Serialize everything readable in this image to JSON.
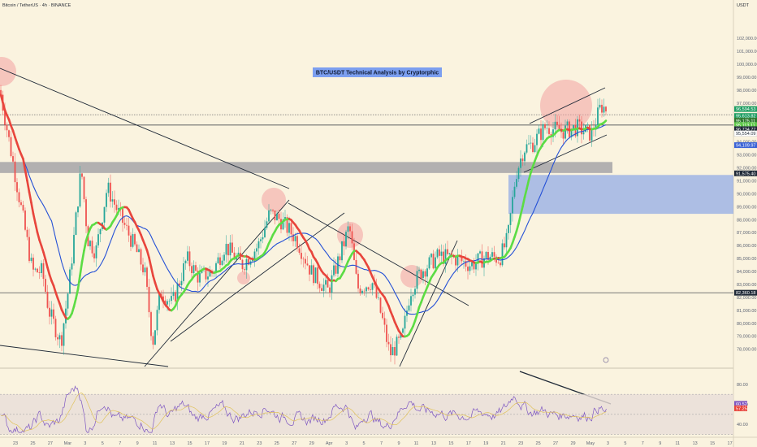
{
  "header": {
    "symbol_line": "Bitcoin / TetherUS · 4h · BINANCE",
    "currency": "USDT"
  },
  "chart_data": {
    "type": "candlestick",
    "title": "BTC/USDT Technical Analysis by Cryptorphic",
    "price_axis": {
      "range": [
        76600,
        104200
      ],
      "ticks": [
        "102,000.00",
        "101,000.00",
        "100,000.00",
        "99,000.00",
        "98,000.00",
        "97,000.00",
        "96,000.00",
        "95,000.00",
        "94,000.00",
        "93,000.00",
        "92,000.00",
        "91,000.00",
        "90,000.00",
        "89,000.00",
        "88,000.00",
        "87,000.00",
        "86,000.00",
        "85,000.00",
        "84,000.00",
        "83,000.00",
        "82,000.00",
        "81,000.00",
        "80,000.00",
        "79,000.00",
        "78,000.00"
      ]
    },
    "price_labels": [
      {
        "text": "96,594.53",
        "price": 96540,
        "color": "#1e9e63"
      },
      {
        "text": "95,613.82",
        "price": 96000,
        "color": "#1e9e63"
      },
      {
        "text": "95,175.11",
        "price": 95650,
        "color": "#2f7a2f"
      },
      {
        "text": "95,113.11",
        "price": 95300,
        "color": "#5fc94a"
      },
      {
        "text": "96,734.77",
        "price": 94980,
        "color": "#1f2937"
      },
      {
        "text": "95,554.09",
        "price": 94650,
        "color": "#ffffff"
      },
      {
        "text": "94,109.97",
        "price": 93750,
        "color": "#3a63d6"
      },
      {
        "text": "91,575.40",
        "price": 91573,
        "color": "#1f2937"
      },
      {
        "text": "82,360.18",
        "price": 82360,
        "color": "#1f2937"
      }
    ],
    "x_axis": [
      "23",
      "25",
      "27",
      "Mar",
      "3",
      "5",
      "7",
      "9",
      "11",
      "13",
      "15",
      "17",
      "19",
      "21",
      "23",
      "25",
      "27",
      "29",
      "Apr",
      "3",
      "5",
      "7",
      "9",
      "11",
      "13",
      "15",
      "17",
      "19",
      "21",
      "23",
      "25",
      "27",
      "29",
      "May",
      "3",
      "5",
      "7",
      "9",
      "11",
      "13",
      "15",
      "17"
    ],
    "ohlc_4h_approx": [
      {
        "date": "Feb 20",
        "close": 98000
      },
      {
        "date": "Feb 24",
        "close": 92000
      },
      {
        "date": "Feb 27",
        "close": 79500
      },
      {
        "date": "Mar 1",
        "close": 84500
      },
      {
        "date": "Mar 2",
        "close": 93500
      },
      {
        "date": "Mar 4",
        "close": 86000
      },
      {
        "date": "Mar 7",
        "close": 88500
      },
      {
        "date": "Mar 10",
        "close": 79000
      },
      {
        "date": "Mar 14",
        "close": 84000
      },
      {
        "date": "Mar 19",
        "close": 86500
      },
      {
        "date": "Mar 24",
        "close": 88200
      },
      {
        "date": "Mar 27",
        "close": 86500
      },
      {
        "date": "Apr 1",
        "close": 83500
      },
      {
        "date": "Apr 3",
        "close": 87500
      },
      {
        "date": "Apr 5",
        "close": 83500
      },
      {
        "date": "Apr 7",
        "close": 77200
      },
      {
        "date": "Apr 10",
        "close": 83000
      },
      {
        "date": "Apr 14",
        "close": 84800
      },
      {
        "date": "Apr 18",
        "close": 85000
      },
      {
        "date": "Apr 21",
        "close": 88000
      },
      {
        "date": "Apr 22",
        "close": 93500
      },
      {
        "date": "Apr 25",
        "close": 94500
      },
      {
        "date": "Apr 29",
        "close": 95000
      },
      {
        "date": "May 1",
        "close": 96800
      },
      {
        "date": "May 2",
        "close": 96400
      }
    ],
    "zones": [
      {
        "name": "grey-resistance",
        "from": 91600,
        "to": 92450,
        "color": "#9a9aa0"
      },
      {
        "name": "blue-demand",
        "from": 88450,
        "to": 91450,
        "color": "#8ca6e6"
      }
    ],
    "horizontal_lines": [
      {
        "price": 95300,
        "style": "solid"
      },
      {
        "price": 96100,
        "style": "dotted"
      },
      {
        "price": 82360,
        "style": "solid"
      }
    ],
    "rsi": {
      "ticks": [
        "80.00",
        "60.00",
        "40.00"
      ],
      "current": "60.52",
      "ma": "57.25",
      "band": [
        30,
        70
      ]
    }
  }
}
